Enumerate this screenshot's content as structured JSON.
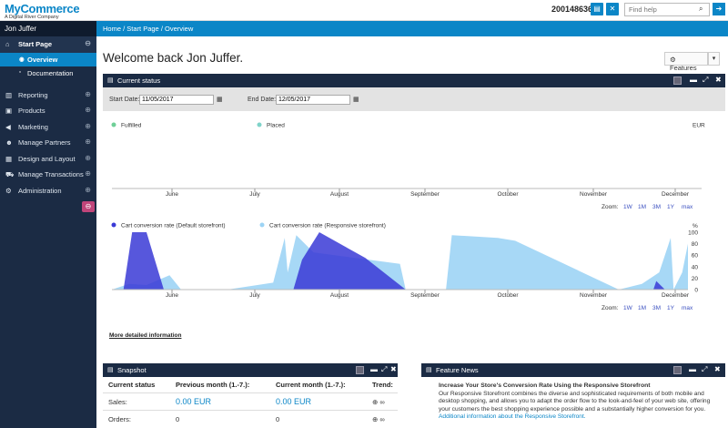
{
  "brand": {
    "name": "MyCommerce",
    "tagline": "A Digital River Company"
  },
  "header": {
    "account_id": "200148636",
    "search_placeholder": "Find help"
  },
  "sidebar": {
    "user": "Jon Juffer",
    "items": [
      {
        "label": "Start Page",
        "icon": "home-icon"
      },
      {
        "label": "Reporting",
        "icon": "bar-chart-icon"
      },
      {
        "label": "Products",
        "icon": "box-icon"
      },
      {
        "label": "Marketing",
        "icon": "megaphone-icon"
      },
      {
        "label": "Manage Partners",
        "icon": "users-icon"
      },
      {
        "label": "Design and Layout",
        "icon": "layout-icon"
      },
      {
        "label": "Manage Transactions",
        "icon": "cart-icon"
      },
      {
        "label": "Administration",
        "icon": "gears-icon"
      }
    ],
    "sub_items": [
      {
        "label": "Overview",
        "icon": "eye-icon"
      },
      {
        "label": "Documentation",
        "icon": "doc-icon"
      }
    ]
  },
  "breadcrumb": [
    "Home",
    "Start Page",
    "Overview"
  ],
  "page": {
    "title": "Welcome back Jon Juffer.",
    "features_label": "Features"
  },
  "status_panel": {
    "title": "Current status",
    "start_date_label": "Start Date:",
    "start_date": "11/05/2017",
    "end_date_label": "End Date:",
    "end_date": "12/05/2017",
    "more_info": "More detailed information"
  },
  "chart_data": [
    {
      "type": "area",
      "categories": [
        "June",
        "July",
        "August",
        "September",
        "October",
        "November",
        "December"
      ],
      "series": [
        {
          "name": "Fulfilled",
          "color": "#6fcf97",
          "values": [
            0,
            0,
            0,
            0,
            0,
            0,
            0
          ]
        },
        {
          "name": "Placed",
          "color": "#7fd3c9",
          "values": [
            0,
            0,
            0,
            0,
            0,
            0,
            0
          ]
        }
      ],
      "unit_label": "EUR",
      "zoom_label": "Zoom:",
      "zoom_options": [
        "1W",
        "1M",
        "3M",
        "1Y",
        "max"
      ]
    },
    {
      "type": "area",
      "categories": [
        "June",
        "July",
        "August",
        "September",
        "October",
        "November",
        "December"
      ],
      "y_ticks": [
        0,
        20,
        40,
        60,
        80,
        100
      ],
      "y_unit": "%",
      "ylim": [
        0,
        100
      ],
      "series": [
        {
          "name": "Cart conversion rate (Default storefront)",
          "color": "#3a3ad6",
          "points": [
            [
              0,
              0
            ],
            [
              0.02,
              0
            ],
            [
              0.035,
              100
            ],
            [
              0.06,
              100
            ],
            [
              0.09,
              0
            ],
            [
              0.3,
              0
            ],
            [
              0.315,
              0
            ],
            [
              0.33,
              52
            ],
            [
              0.36,
              100
            ],
            [
              0.44,
              55
            ],
            [
              0.51,
              0
            ],
            [
              0.94,
              0
            ],
            [
              0.945,
              15
            ],
            [
              0.96,
              0
            ],
            [
              1.0,
              0
            ]
          ]
        },
        {
          "name": "Cart conversion rate (Responsive storefront)",
          "color": "#9dd4f5",
          "points": [
            [
              0,
              0
            ],
            [
              0.03,
              10
            ],
            [
              0.06,
              8
            ],
            [
              0.1,
              25
            ],
            [
              0.12,
              0
            ],
            [
              0.2,
              0
            ],
            [
              0.28,
              12
            ],
            [
              0.3,
              90
            ],
            [
              0.305,
              30
            ],
            [
              0.32,
              95
            ],
            [
              0.35,
              65
            ],
            [
              0.5,
              45
            ],
            [
              0.51,
              0
            ],
            [
              0.58,
              0
            ],
            [
              0.59,
              95
            ],
            [
              0.67,
              90
            ],
            [
              0.7,
              85
            ],
            [
              0.88,
              0
            ],
            [
              0.92,
              10
            ],
            [
              0.95,
              30
            ],
            [
              0.97,
              90
            ],
            [
              0.975,
              0
            ],
            [
              0.99,
              30
            ],
            [
              1.0,
              80
            ]
          ]
        }
      ],
      "zoom_label": "Zoom:",
      "zoom_options": [
        "1W",
        "1M",
        "3M",
        "1Y",
        "max"
      ]
    }
  ],
  "snapshot": {
    "title": "Snapshot",
    "headers": [
      "Current status",
      "Previous month (1.-7.):",
      "Current month (1.-7.):",
      "Trend:"
    ],
    "rows": [
      {
        "label": "Sales:",
        "prev": "0.00 EUR",
        "curr": "0.00 EUR",
        "trend": "⊕ ∞"
      },
      {
        "label": "Orders:",
        "prev": "0",
        "curr": "0",
        "trend": "⊕ ∞"
      }
    ]
  },
  "news": {
    "title": "Feature News",
    "headline": "Increase Your Store's Conversion Rate Using the Responsive Storefront",
    "body": "Our Responsive Storefront combines the diverse and sophisticated requirements of both mobile and desktop shopping, and allows you to adapt the order flow to the look-and-feel of your web site, offering your customers the best shopping experience possible and a substantially higher conversion for you.",
    "link": "Additional information about the Responsive Storefront."
  }
}
